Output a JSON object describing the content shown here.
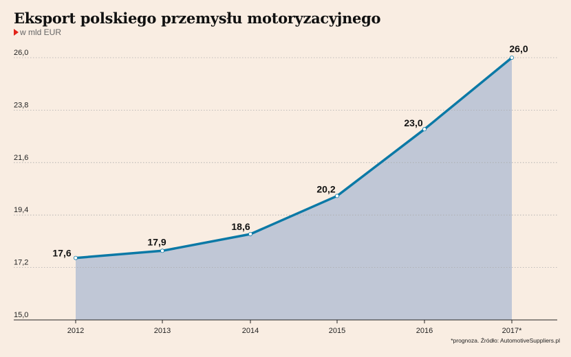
{
  "title": "Eksport polskiego przemysłu motoryzacyjnego",
  "subtitle": "w mld EUR",
  "note": "*prognoza. Źródło: AutomotiveSuppliers.pl",
  "colors": {
    "line": "#0b79a6",
    "area": "#c0c7d6",
    "grid": "#aaaaaa",
    "marker": "#e2231a"
  },
  "chart_data": {
    "type": "area",
    "title": "Eksport polskiego przemysłu motoryzacyjnego",
    "subtitle": "w mld EUR",
    "categories": [
      "2012",
      "2013",
      "2014",
      "2015",
      "2016",
      "2017*"
    ],
    "values": [
      17.6,
      17.9,
      18.6,
      20.2,
      23.0,
      26.0
    ],
    "value_labels": [
      "17,6",
      "17,9",
      "18,6",
      "20,2",
      "23,0",
      "26,0"
    ],
    "yticks": [
      15.0,
      17.2,
      19.4,
      21.6,
      23.8,
      26.0
    ],
    "ytick_labels": [
      "15,0",
      "17,2",
      "19,4",
      "21,6",
      "23,8",
      "26,0"
    ],
    "ylim": [
      15.0,
      26.0
    ],
    "xlabel": "",
    "ylabel": "",
    "grid": true,
    "legend": "none"
  }
}
